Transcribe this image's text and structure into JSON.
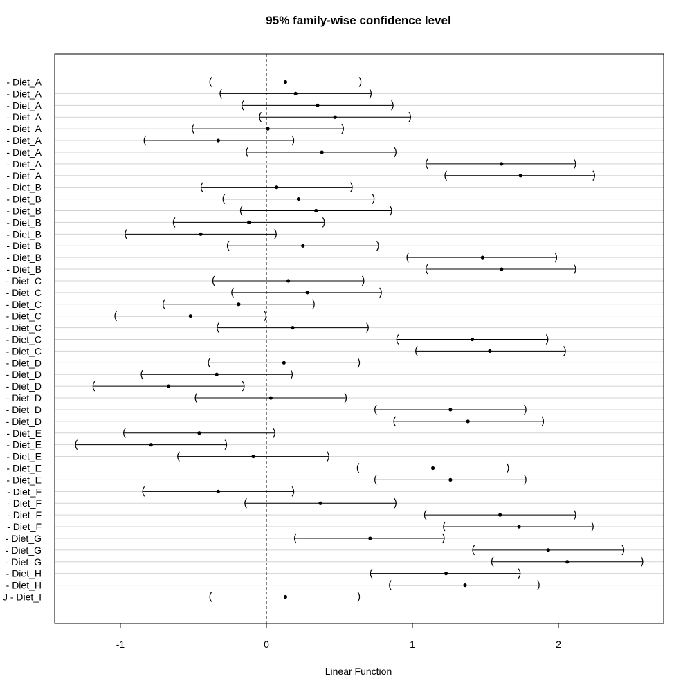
{
  "chart_data": {
    "type": "interval",
    "title": "95% family-wise confidence level",
    "xlabel": "Linear Function",
    "ylabel": "",
    "xlim": [
      -1.45,
      2.72
    ],
    "x_ticks": [
      -1,
      0,
      1,
      2
    ],
    "x_tick_labels": [
      "-1",
      "0",
      "1",
      "2"
    ],
    "reference_line_x": 0,
    "grid": "horizontal",
    "comparisons": [
      {
        "label": "- Diet_A",
        "estimate": 0.13,
        "lower": -0.39,
        "upper": 0.65
      },
      {
        "label": "- Diet_A",
        "estimate": 0.2,
        "lower": -0.32,
        "upper": 0.72
      },
      {
        "label": "- Diet_A",
        "estimate": 0.35,
        "lower": -0.17,
        "upper": 0.87
      },
      {
        "label": "- Diet_A",
        "estimate": 0.47,
        "lower": -0.05,
        "upper": 0.99
      },
      {
        "label": "- Diet_A",
        "estimate": 0.01,
        "lower": -0.51,
        "upper": 0.53
      },
      {
        "label": "- Diet_A",
        "estimate": -0.33,
        "lower": -0.84,
        "upper": 0.19
      },
      {
        "label": "- Diet_A",
        "estimate": 0.38,
        "lower": -0.14,
        "upper": 0.89
      },
      {
        "label": "- Diet_A",
        "estimate": 1.61,
        "lower": 1.09,
        "upper": 2.12
      },
      {
        "label": "- Diet_A",
        "estimate": 1.74,
        "lower": 1.22,
        "upper": 2.25
      },
      {
        "label": "- Diet_B",
        "estimate": 0.07,
        "lower": -0.45,
        "upper": 0.59
      },
      {
        "label": "- Diet_B",
        "estimate": 0.22,
        "lower": -0.3,
        "upper": 0.74
      },
      {
        "label": "- Diet_B",
        "estimate": 0.34,
        "lower": -0.18,
        "upper": 0.86
      },
      {
        "label": "- Diet_B",
        "estimate": -0.12,
        "lower": -0.64,
        "upper": 0.4
      },
      {
        "label": "- Diet_B",
        "estimate": -0.45,
        "lower": -0.97,
        "upper": 0.07
      },
      {
        "label": "- Diet_B",
        "estimate": 0.25,
        "lower": -0.27,
        "upper": 0.77
      },
      {
        "label": "- Diet_B",
        "estimate": 1.48,
        "lower": 0.96,
        "upper": 1.99
      },
      {
        "label": "- Diet_B",
        "estimate": 1.61,
        "lower": 1.09,
        "upper": 2.12
      },
      {
        "label": "- Diet_C",
        "estimate": 0.15,
        "lower": -0.37,
        "upper": 0.67
      },
      {
        "label": "- Diet_C",
        "estimate": 0.28,
        "lower": -0.24,
        "upper": 0.79
      },
      {
        "label": "- Diet_C",
        "estimate": -0.19,
        "lower": -0.71,
        "upper": 0.33
      },
      {
        "label": "- Diet_C",
        "estimate": -0.52,
        "lower": -1.04,
        "upper": 0.0
      },
      {
        "label": "- Diet_C",
        "estimate": 0.18,
        "lower": -0.34,
        "upper": 0.7
      },
      {
        "label": "- Diet_C",
        "estimate": 1.41,
        "lower": 0.89,
        "upper": 1.93
      },
      {
        "label": "- Diet_C",
        "estimate": 1.53,
        "lower": 1.02,
        "upper": 2.05
      },
      {
        "label": "- Diet_D",
        "estimate": 0.12,
        "lower": -0.4,
        "upper": 0.64
      },
      {
        "label": "- Diet_D",
        "estimate": -0.34,
        "lower": -0.86,
        "upper": 0.18
      },
      {
        "label": "- Diet_D",
        "estimate": -0.67,
        "lower": -1.19,
        "upper": -0.15
      },
      {
        "label": "- Diet_D",
        "estimate": 0.03,
        "lower": -0.49,
        "upper": 0.55
      },
      {
        "label": "- Diet_D",
        "estimate": 1.26,
        "lower": 0.74,
        "upper": 1.78
      },
      {
        "label": "- Diet_D",
        "estimate": 1.38,
        "lower": 0.87,
        "upper": 1.9
      },
      {
        "label": "- Diet_E",
        "estimate": -0.46,
        "lower": -0.98,
        "upper": 0.06
      },
      {
        "label": "- Diet_E",
        "estimate": -0.79,
        "lower": -1.31,
        "upper": -0.27
      },
      {
        "label": "- Diet_E",
        "estimate": -0.09,
        "lower": -0.61,
        "upper": 0.43
      },
      {
        "label": "- Diet_E",
        "estimate": 1.14,
        "lower": 0.62,
        "upper": 1.66
      },
      {
        "label": "- Diet_E",
        "estimate": 1.26,
        "lower": 0.74,
        "upper": 1.78
      },
      {
        "label": "- Diet_F",
        "estimate": -0.33,
        "lower": -0.85,
        "upper": 0.19
      },
      {
        "label": "- Diet_F",
        "estimate": 0.37,
        "lower": -0.15,
        "upper": 0.89
      },
      {
        "label": "- Diet_F",
        "estimate": 1.6,
        "lower": 1.08,
        "upper": 2.12
      },
      {
        "label": "- Diet_F",
        "estimate": 1.73,
        "lower": 1.21,
        "upper": 2.24
      },
      {
        "label": "- Diet_G",
        "estimate": 0.71,
        "lower": 0.19,
        "upper": 1.22
      },
      {
        "label": "- Diet_G",
        "estimate": 1.93,
        "lower": 1.41,
        "upper": 2.45
      },
      {
        "label": "- Diet_G",
        "estimate": 2.06,
        "lower": 1.54,
        "upper": 2.58
      },
      {
        "label": "- Diet_H",
        "estimate": 1.23,
        "lower": 0.71,
        "upper": 1.74
      },
      {
        "label": "- Diet_H",
        "estimate": 1.36,
        "lower": 0.84,
        "upper": 1.87
      },
      {
        "label": "J - Diet_I",
        "estimate": 0.13,
        "lower": -0.39,
        "upper": 0.64
      }
    ]
  }
}
